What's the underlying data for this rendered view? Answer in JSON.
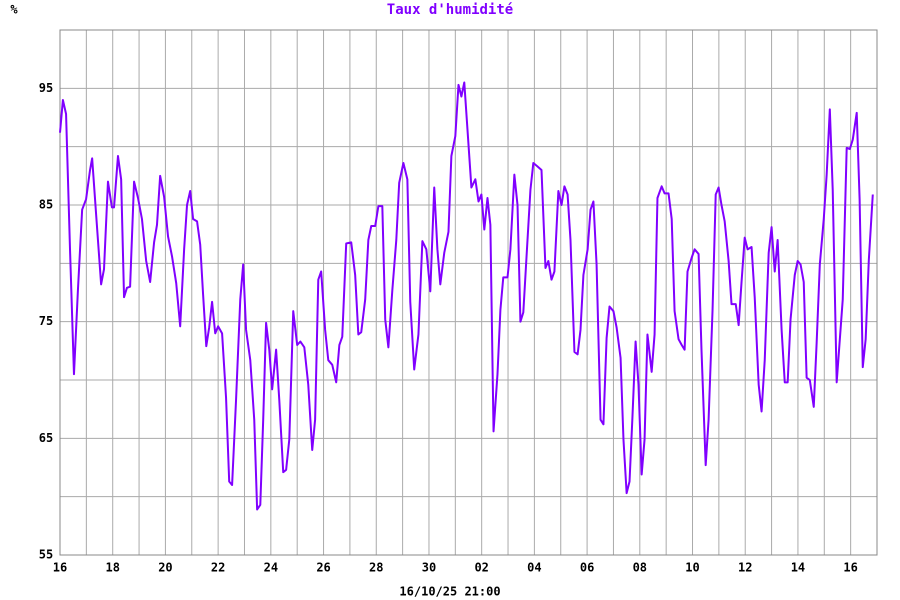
{
  "chart_data": {
    "type": "line",
    "title": "Taux d'humidité",
    "y_unit": "%",
    "subtitle": "16/10/25 21:00",
    "color": "#8000ff",
    "grid": true,
    "xlim": [
      0,
      31
    ],
    "ylim": [
      55,
      100
    ],
    "xticks": [
      {
        "value": 0,
        "label": "16"
      },
      {
        "value": 2,
        "label": "18"
      },
      {
        "value": 4,
        "label": "20"
      },
      {
        "value": 6,
        "label": "22"
      },
      {
        "value": 8,
        "label": "24"
      },
      {
        "value": 10,
        "label": "26"
      },
      {
        "value": 12,
        "label": "28"
      },
      {
        "value": 14,
        "label": "30"
      },
      {
        "value": 16,
        "label": "02"
      },
      {
        "value": 18,
        "label": "04"
      },
      {
        "value": 20,
        "label": "06"
      },
      {
        "value": 22,
        "label": "08"
      },
      {
        "value": 24,
        "label": "10"
      },
      {
        "value": 26,
        "label": "12"
      },
      {
        "value": 28,
        "label": "14"
      },
      {
        "value": 30,
        "label": "16"
      }
    ],
    "xgrid_minor": [
      1,
      3,
      5,
      7,
      9,
      11,
      13,
      15,
      17,
      19,
      21,
      23,
      25,
      27,
      29
    ],
    "yticks": [
      55,
      65,
      75,
      85,
      95
    ],
    "ygrid_minor": [
      60,
      70,
      80,
      90
    ],
    "x": [
      0,
      0.11,
      0.23,
      0.38,
      0.53,
      0.68,
      0.84,
      0.99,
      1.14,
      1.22,
      1.37,
      1.56,
      1.67,
      1.82,
      1.97,
      2.05,
      2.2,
      2.32,
      2.43,
      2.54,
      2.66,
      2.81,
      2.96,
      3.11,
      3.27,
      3.42,
      3.57,
      3.68,
      3.8,
      3.95,
      4.1,
      4.25,
      4.41,
      4.56,
      4.71,
      4.82,
      4.94,
      5.05,
      5.2,
      5.32,
      5.43,
      5.55,
      5.66,
      5.77,
      5.89,
      6.0,
      6.15,
      6.3,
      6.42,
      6.53,
      6.68,
      6.84,
      6.95,
      7.06,
      7.22,
      7.37,
      7.48,
      7.6,
      7.71,
      7.82,
      7.94,
      8.05,
      8.2,
      8.32,
      8.47,
      8.58,
      8.7,
      8.85,
      9.0,
      9.12,
      9.27,
      9.42,
      9.57,
      9.68,
      9.8,
      9.91,
      10.06,
      10.18,
      10.33,
      10.48,
      10.6,
      10.71,
      10.86,
      11.05,
      11.2,
      11.32,
      11.43,
      11.58,
      11.7,
      11.81,
      11.96,
      12.08,
      12.23,
      12.34,
      12.46,
      12.61,
      12.76,
      12.87,
      13.03,
      13.18,
      13.29,
      13.44,
      13.6,
      13.75,
      13.9,
      14.05,
      14.2,
      14.32,
      14.43,
      14.58,
      14.74,
      14.85,
      15.0,
      15.12,
      15.23,
      15.34,
      15.46,
      15.61,
      15.76,
      15.88,
      15.99,
      16.1,
      16.22,
      16.33,
      16.45,
      16.6,
      16.71,
      16.82,
      16.98,
      17.09,
      17.24,
      17.36,
      17.47,
      17.58,
      17.7,
      17.85,
      17.96,
      18.12,
      18.27,
      18.42,
      18.53,
      18.65,
      18.76,
      18.91,
      19.03,
      19.14,
      19.26,
      19.37,
      19.52,
      19.64,
      19.75,
      19.86,
      20.02,
      20.13,
      20.24,
      20.36,
      20.51,
      20.62,
      20.74,
      20.85,
      21.0,
      21.12,
      21.27,
      21.38,
      21.5,
      21.61,
      21.72,
      21.84,
      21.95,
      22.07,
      22.18,
      22.29,
      22.45,
      22.56,
      22.67,
      22.83,
      22.94,
      23.09,
      23.21,
      23.32,
      23.47,
      23.59,
      23.7,
      23.81,
      23.97,
      24.08,
      24.23,
      24.34,
      24.5,
      24.61,
      24.76,
      24.88,
      24.99,
      25.1,
      25.22,
      25.37,
      25.48,
      25.64,
      25.75,
      25.86,
      25.98,
      26.09,
      26.24,
      26.36,
      26.51,
      26.62,
      26.74,
      26.89,
      27.0,
      27.12,
      27.23,
      27.38,
      27.5,
      27.61,
      27.72,
      27.88,
      27.99,
      28.1,
      28.22,
      28.33,
      28.45,
      28.6,
      28.71,
      28.83,
      28.98,
      29.09,
      29.21,
      29.32,
      29.47,
      29.59,
      29.7,
      29.85,
      29.97,
      30.08,
      30.23,
      30.34,
      30.46,
      30.57,
      30.69,
      30.84
    ],
    "values": [
      91.2,
      94,
      92.8,
      81.2,
      70.5,
      77.7,
      84.6,
      85.5,
      88,
      89,
      84.2,
      78.2,
      79.5,
      87,
      84.8,
      84.8,
      89.2,
      87.2,
      77.1,
      77.9,
      78,
      87,
      85.6,
      83.8,
      80.2,
      78.4,
      81.8,
      83.3,
      87.5,
      85.7,
      82.3,
      80.6,
      78.3,
      74.6,
      81.2,
      85,
      86.2,
      83.8,
      83.6,
      81.6,
      77.3,
      72.9,
      74.5,
      76.7,
      74,
      74.6,
      74,
      68.5,
      61.3,
      61,
      68.3,
      76.9,
      79.9,
      74.3,
      71.7,
      66.6,
      58.9,
      59.3,
      66.6,
      74.9,
      72.6,
      69.2,
      72.6,
      68.3,
      62.1,
      62.3,
      64.9,
      75.9,
      73,
      73.3,
      72.8,
      69.6,
      64,
      66.6,
      78.6,
      79.3,
      74.3,
      71.7,
      71.3,
      69.8,
      73,
      73.7,
      81.7,
      81.8,
      79,
      73.9,
      74.1,
      76.9,
      82,
      83.2,
      83.2,
      84.9,
      84.9,
      75.2,
      72.8,
      77.7,
      82,
      86.9,
      88.6,
      87.2,
      76.7,
      70.9,
      73.9,
      81.9,
      81.2,
      77.6,
      86.5,
      81.2,
      78.2,
      80.9,
      82.7,
      89.2,
      90.9,
      95.3,
      94.3,
      95.5,
      91.5,
      86.5,
      87.2,
      85.3,
      85.9,
      82.9,
      85.6,
      83.3,
      65.6,
      70.5,
      76,
      78.8,
      78.8,
      81.2,
      87.6,
      85,
      75,
      75.8,
      80.5,
      86.3,
      88.6,
      88.3,
      88,
      79.6,
      80.2,
      78.6,
      79.3,
      86.2,
      85,
      86.6,
      85.9,
      82,
      72.4,
      72.2,
      74.3,
      79,
      81.2,
      84.6,
      85.3,
      79.9,
      66.6,
      66.2,
      73.6,
      76.3,
      75.9,
      74.5,
      71.9,
      64.9,
      60.3,
      61.3,
      66.8,
      73.3,
      69.6,
      61.9,
      64.9,
      73.9,
      70.7,
      73.9,
      85.6,
      86.6,
      86,
      86,
      83.8,
      75.9,
      73.5,
      73,
      72.6,
      79.3,
      80.5,
      81.2,
      80.8,
      72.6,
      62.7,
      66.6,
      76,
      85.9,
      86.5,
      85,
      83.6,
      80.2,
      76.5,
      76.5,
      74.7,
      78.4,
      82.2,
      81.2,
      81.4,
      77.1,
      69.6,
      67.3,
      71.7,
      80.9,
      83.1,
      79.3,
      82,
      74.3,
      69.8,
      69.8,
      75.2,
      79,
      80.2,
      79.9,
      78.4,
      70.2,
      70,
      67.7,
      73.2,
      79.9,
      83.8,
      87.6,
      93.2,
      86.3,
      69.8,
      73.5,
      76.9,
      89.9,
      89.8,
      90.6,
      92.9,
      85.5,
      71.1,
      73.5,
      80.3,
      85.9
    ]
  }
}
